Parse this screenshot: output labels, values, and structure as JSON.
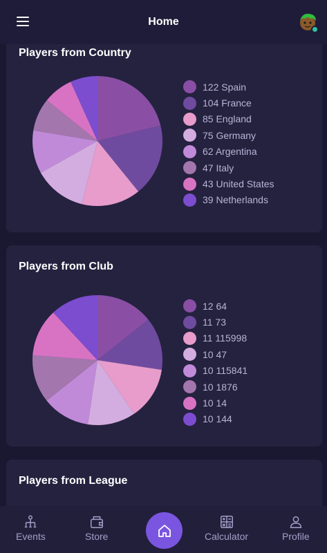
{
  "header": {
    "title": "Home",
    "menu_icon": "menu-icon",
    "avatar_icon": "avatar-icon"
  },
  "cards": [
    {
      "title": "Players from Country",
      "legend": [
        "122 Spain",
        "104 France",
        "85 England",
        "75 Germany",
        "62 Argentina",
        "47 Italy",
        "43 United States",
        "39 Netherlands"
      ]
    },
    {
      "title": "Players from Club",
      "legend": [
        "12 64",
        "11 73",
        "11 115998",
        "10 47",
        "10 115841",
        "10 1876",
        "10 14",
        "10 144"
      ]
    },
    {
      "title": "Players from League"
    }
  ],
  "chart_data": [
    {
      "type": "pie",
      "title": "Players from Country",
      "categories": [
        "Spain",
        "France",
        "England",
        "Germany",
        "Argentina",
        "Italy",
        "United States",
        "Netherlands"
      ],
      "values": [
        122,
        104,
        85,
        75,
        62,
        47,
        43,
        39
      ],
      "colors": [
        "#8a4fa5",
        "#6f4ba0",
        "#e79ccb",
        "#d4ade0",
        "#c18ad9",
        "#a377ad",
        "#d873c4",
        "#7c4dcf"
      ],
      "legend_position": "right"
    },
    {
      "type": "pie",
      "title": "Players from Club",
      "categories": [
        "64",
        "73",
        "115998",
        "47",
        "115841",
        "1876",
        "14",
        "144"
      ],
      "values": [
        12,
        11,
        11,
        10,
        10,
        10,
        10,
        10
      ],
      "colors": [
        "#8a4fa5",
        "#6f4ba0",
        "#e79ccb",
        "#d4ade0",
        "#c18ad9",
        "#a377ad",
        "#d873c4",
        "#7c4dcf"
      ],
      "legend_position": "right"
    }
  ],
  "bottom_nav": {
    "events_label": "Events",
    "store_label": "Store",
    "calculator_label": "Calculator",
    "profile_label": "Profile",
    "events_icon": "events-icon",
    "store_icon": "store-icon",
    "home_icon": "home-icon",
    "calculator_icon": "calculator-icon",
    "profile_icon": "profile-icon",
    "home_color": "#7a55e0"
  },
  "colors": {
    "background": "#1a1831",
    "card": "#25223f",
    "header": "#1e1c38",
    "nav_text": "#a59fc8",
    "legend_text": "#b9b3d6"
  }
}
